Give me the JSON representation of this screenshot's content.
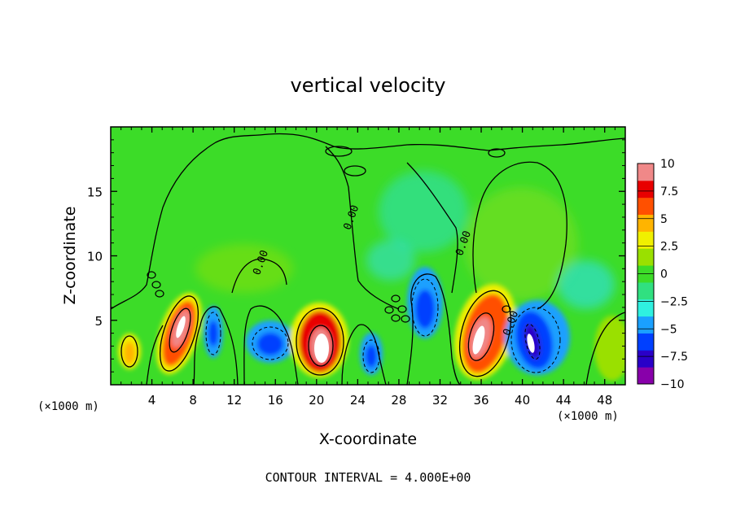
{
  "chart_data": {
    "type": "heatmap",
    "title": "vertical velocity",
    "xlabel": "X-coordinate",
    "ylabel": "Z-coordinate",
    "x_unit_left": "(×1000 m)",
    "x_unit_right": "(×1000 m)",
    "footer": "CONTOUR INTERVAL = 4.000E+00",
    "xlim": [
      0,
      50
    ],
    "ylim": [
      0,
      20
    ],
    "x_ticks": [
      4,
      8,
      12,
      16,
      20,
      24,
      28,
      32,
      36,
      40,
      44,
      48
    ],
    "y_ticks": [
      5,
      10,
      15
    ],
    "colorbar": {
      "ticks": [
        "10",
        "7.5",
        "5",
        "2.5",
        "0",
        "−2.5",
        "−5",
        "−7.5",
        "−10"
      ],
      "range": [
        -10,
        10
      ],
      "colors": [
        "#8800aa",
        "#2a00c8",
        "#0040ff",
        "#1aa0ff",
        "#2ff0e0",
        "#30e080",
        "#3cdc28",
        "#9ae000",
        "#f0f000",
        "#ffb400",
        "#ff5000",
        "#e80000",
        "#f08888"
      ]
    },
    "contour_labels": [
      {
        "text": "0.00",
        "x": 14.5,
        "y": 9.5
      },
      {
        "text": "0.00",
        "x": 23.3,
        "y": 13.0
      },
      {
        "text": "0.00",
        "x": 34.2,
        "y": 11.0
      },
      {
        "text": "0.00",
        "x": 38.8,
        "y": 4.8
      }
    ],
    "cells": [
      {
        "x": 1.5,
        "z": 2.5,
        "v": 4
      },
      {
        "x": 7.0,
        "z": 4.5,
        "v": 10
      },
      {
        "x": 10.0,
        "z": 4.0,
        "v": -6
      },
      {
        "x": 16.0,
        "z": 3.5,
        "v": -5
      },
      {
        "x": 20.2,
        "z": 3.5,
        "v": 10
      },
      {
        "x": 25.5,
        "z": 2.5,
        "v": -4
      },
      {
        "x": 30.8,
        "z": 6.0,
        "v": -6
      },
      {
        "x": 35.5,
        "z": 4.0,
        "v": 10
      },
      {
        "x": 41.0,
        "z": 3.5,
        "v": -10
      },
      {
        "x": 29.0,
        "z": 14.0,
        "v": -2
      },
      {
        "x": 38.0,
        "z": 12.0,
        "v": 2
      }
    ]
  }
}
